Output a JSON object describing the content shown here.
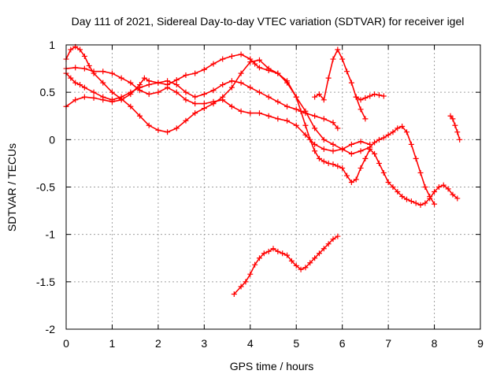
{
  "chart_data": {
    "type": "scatter",
    "title": "Day 111 of 2021, Sidereal Day-to-day VTEC variation (SDTVAR) for receiver igel",
    "xlabel": "GPS time / hours",
    "ylabel": "SDTVAR / TECUs",
    "xlim": [
      0,
      9
    ],
    "ylim": [
      -2,
      1
    ],
    "xticks": [
      0,
      1,
      2,
      3,
      4,
      5,
      6,
      7,
      8,
      9
    ],
    "yticks": [
      -2,
      -1.5,
      -1,
      -0.5,
      0,
      0.5,
      1
    ],
    "xtick_labels": [
      "0",
      "1",
      "2",
      "3",
      "4",
      "5",
      "6",
      "7",
      "8",
      "9"
    ],
    "ytick_labels": [
      "-2",
      "-1.5",
      "-1",
      "-0.5",
      "0",
      "0.5",
      "1"
    ],
    "grid": true,
    "marker": "+",
    "color": "#ff0000",
    "series": [
      {
        "x": [
          0.0,
          0.1,
          0.2,
          0.3,
          0.4,
          0.5,
          0.6,
          0.8,
          1.0,
          1.2,
          1.4,
          1.6,
          1.8,
          2.0,
          2.2,
          2.4,
          2.6,
          2.8,
          3.0,
          3.2,
          3.4,
          3.6,
          3.8,
          4.0,
          4.2,
          4.4,
          4.6,
          4.8,
          5.0,
          5.1,
          5.2,
          5.3,
          5.4,
          5.5,
          5.6,
          5.7,
          5.8,
          5.9,
          6.0,
          6.1,
          6.2,
          6.3,
          6.4,
          6.5,
          6.6,
          6.7,
          6.8,
          6.9,
          7.0,
          7.1,
          7.2,
          7.3,
          7.4,
          7.5,
          7.6,
          7.7,
          7.8,
          7.9,
          8.0,
          8.1,
          8.2,
          8.3,
          8.4,
          8.5
        ],
        "y": [
          0.85,
          0.95,
          0.98,
          0.95,
          0.88,
          0.78,
          0.7,
          0.6,
          0.5,
          0.43,
          0.35,
          0.25,
          0.15,
          0.1,
          0.08,
          0.12,
          0.2,
          0.28,
          0.33,
          0.38,
          0.45,
          0.55,
          0.7,
          0.82,
          0.84,
          0.75,
          0.7,
          0.62,
          0.45,
          0.3,
          0.15,
          0.0,
          -0.12,
          -0.2,
          -0.23,
          -0.25,
          -0.26,
          -0.28,
          -0.3,
          -0.38,
          -0.45,
          -0.42,
          -0.3,
          -0.2,
          -0.1,
          -0.15,
          -0.25,
          -0.35,
          -0.45,
          -0.5,
          -0.55,
          -0.6,
          -0.63,
          -0.65,
          -0.67,
          -0.69,
          -0.67,
          -0.62,
          -0.55,
          -0.5,
          -0.48,
          -0.52,
          -0.58,
          -0.62
        ]
      },
      {
        "x": [
          0.0,
          0.2,
          0.4,
          0.6,
          0.8,
          1.0,
          1.2,
          1.4,
          1.6,
          1.7,
          1.8,
          2.0,
          2.2,
          2.4,
          2.6,
          2.8,
          3.0,
          3.2,
          3.4,
          3.6,
          3.8,
          4.0,
          4.1,
          4.2,
          4.4,
          4.6,
          4.8,
          5.0,
          5.2,
          5.4,
          5.6,
          5.8,
          6.0,
          6.2,
          6.4,
          6.6,
          6.7,
          6.8,
          6.9,
          7.0,
          7.1,
          7.2,
          7.3,
          7.4,
          7.5,
          7.6,
          7.7,
          7.8,
          7.9,
          8.0
        ],
        "y": [
          0.35,
          0.42,
          0.45,
          0.44,
          0.42,
          0.4,
          0.42,
          0.48,
          0.58,
          0.65,
          0.62,
          0.6,
          0.58,
          0.63,
          0.68,
          0.7,
          0.74,
          0.8,
          0.85,
          0.88,
          0.9,
          0.85,
          0.8,
          0.76,
          0.73,
          0.7,
          0.6,
          0.45,
          0.3,
          0.12,
          0.0,
          -0.05,
          -0.1,
          -0.15,
          -0.12,
          -0.08,
          -0.03,
          0.0,
          0.02,
          0.05,
          0.08,
          0.12,
          0.14,
          0.08,
          -0.05,
          -0.2,
          -0.35,
          -0.5,
          -0.6,
          -0.68
        ]
      },
      {
        "x": [
          0.0,
          0.2,
          0.4,
          0.6,
          0.8,
          1.0,
          1.2,
          1.4,
          1.6,
          1.8,
          2.0,
          2.2,
          2.4,
          2.6,
          2.8,
          3.0,
          3.2,
          3.4,
          3.6,
          3.8,
          4.0,
          4.2,
          4.4,
          4.6,
          4.8,
          5.0,
          5.2,
          5.4,
          5.6,
          5.8,
          6.0,
          6.2,
          6.4,
          6.6
        ],
        "y": [
          0.75,
          0.76,
          0.75,
          0.72,
          0.72,
          0.7,
          0.65,
          0.6,
          0.52,
          0.48,
          0.5,
          0.55,
          0.5,
          0.42,
          0.38,
          0.38,
          0.4,
          0.42,
          0.35,
          0.3,
          0.28,
          0.28,
          0.25,
          0.22,
          0.2,
          0.15,
          0.05,
          -0.05,
          -0.1,
          -0.12,
          -0.1,
          -0.05,
          -0.02,
          -0.05
        ]
      },
      {
        "x": [
          0.0,
          0.1,
          0.2,
          0.3,
          0.4,
          0.6,
          0.8,
          1.0,
          1.2,
          1.4,
          1.6,
          1.8,
          2.0,
          2.2,
          2.4,
          2.6,
          2.8,
          3.0,
          3.2,
          3.4,
          3.6,
          3.8,
          4.0,
          4.2,
          4.4,
          4.6,
          4.8,
          5.0,
          5.2,
          5.4,
          5.6,
          5.8,
          5.9
        ],
        "y": [
          0.7,
          0.65,
          0.6,
          0.58,
          0.55,
          0.5,
          0.45,
          0.42,
          0.45,
          0.5,
          0.55,
          0.58,
          0.6,
          0.62,
          0.58,
          0.5,
          0.45,
          0.48,
          0.52,
          0.58,
          0.62,
          0.6,
          0.55,
          0.5,
          0.45,
          0.4,
          0.35,
          0.32,
          0.28,
          0.25,
          0.22,
          0.18,
          0.12
        ]
      },
      {
        "x": [
          5.4,
          5.5,
          5.6,
          5.7,
          5.8,
          5.9,
          6.0,
          6.1,
          6.2,
          6.3,
          6.4,
          6.5
        ],
        "y": [
          0.45,
          0.48,
          0.42,
          0.65,
          0.85,
          0.95,
          0.85,
          0.72,
          0.6,
          0.45,
          0.32,
          0.22
        ]
      },
      {
        "x": [
          6.3,
          6.4,
          6.5,
          6.6,
          6.7,
          6.8,
          6.9
        ],
        "y": [
          0.45,
          0.42,
          0.44,
          0.46,
          0.48,
          0.47,
          0.46
        ]
      },
      {
        "x": [
          8.35,
          8.4,
          8.45,
          8.5,
          8.55
        ],
        "y": [
          0.25,
          0.22,
          0.15,
          0.08,
          0.0
        ]
      },
      {
        "x": [
          3.65,
          3.8,
          3.9,
          4.0,
          4.1,
          4.2,
          4.3,
          4.4,
          4.5,
          4.6,
          4.7,
          4.8,
          4.9,
          5.0,
          5.1,
          5.2,
          5.3,
          5.4,
          5.5,
          5.6,
          5.7,
          5.8,
          5.9
        ],
        "y": [
          -1.63,
          -1.55,
          -1.5,
          -1.42,
          -1.32,
          -1.25,
          -1.2,
          -1.18,
          -1.15,
          -1.18,
          -1.2,
          -1.22,
          -1.28,
          -1.33,
          -1.37,
          -1.35,
          -1.3,
          -1.25,
          -1.2,
          -1.15,
          -1.1,
          -1.05,
          -1.02
        ]
      }
    ]
  }
}
